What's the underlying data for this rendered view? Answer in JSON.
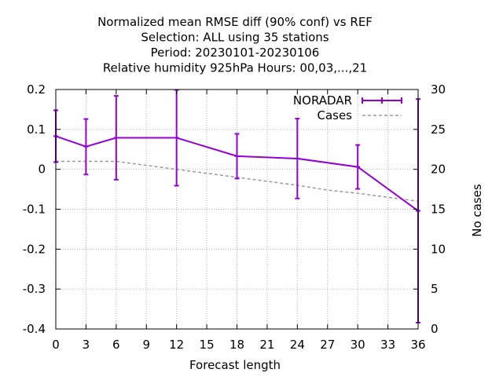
{
  "chart_data": {
    "type": "line",
    "title_lines": [
      "Normalized mean RMSE diff (90% conf) vs REF",
      "Selection: ALL using    35 stations",
      "Period: 20230101-20230106",
      "Relative humidity 925hPa   Hours:  00,03,...,21"
    ],
    "xlabel": "Forecast length",
    "ylabel": "",
    "y2label": "No cases",
    "xlim": [
      0,
      36
    ],
    "ylim": [
      -0.4,
      0.2
    ],
    "y2lim": [
      0,
      30
    ],
    "xticks": [
      0,
      3,
      6,
      9,
      12,
      15,
      18,
      21,
      24,
      27,
      30,
      33,
      36
    ],
    "yticks": [
      0.2,
      0.1,
      0,
      -0.1,
      -0.2,
      -0.3,
      -0.4
    ],
    "ytick_labels": [
      "0.2",
      "0.1",
      "0",
      "-0.1",
      "-0.2",
      "-0.3",
      "-0.4"
    ],
    "y2ticks": [
      30,
      25,
      20,
      15,
      10,
      5,
      0
    ],
    "grid": true,
    "legend_position": "top-right",
    "series": [
      {
        "name": "NORADAR",
        "color": "#9400d3",
        "axis": "left",
        "x": [
          0,
          3,
          6,
          12,
          18,
          24,
          30,
          36
        ],
        "y": [
          0.083,
          0.057,
          0.079,
          0.079,
          0.033,
          0.027,
          0.006,
          -0.104
        ],
        "err_low": [
          0.018,
          -0.013,
          -0.026,
          -0.041,
          -0.023,
          -0.073,
          -0.049,
          -0.384
        ],
        "err_high": [
          0.148,
          0.126,
          0.184,
          0.199,
          0.089,
          0.127,
          0.061,
          0.176
        ]
      },
      {
        "name": "Cases",
        "color": "#999999",
        "axis": "right",
        "style": "dashed",
        "x": [
          0,
          3,
          6,
          12,
          18,
          24,
          27,
          30,
          36
        ],
        "y": [
          21,
          21,
          21,
          20,
          19,
          18,
          17.4,
          17,
          16
        ]
      }
    ]
  }
}
